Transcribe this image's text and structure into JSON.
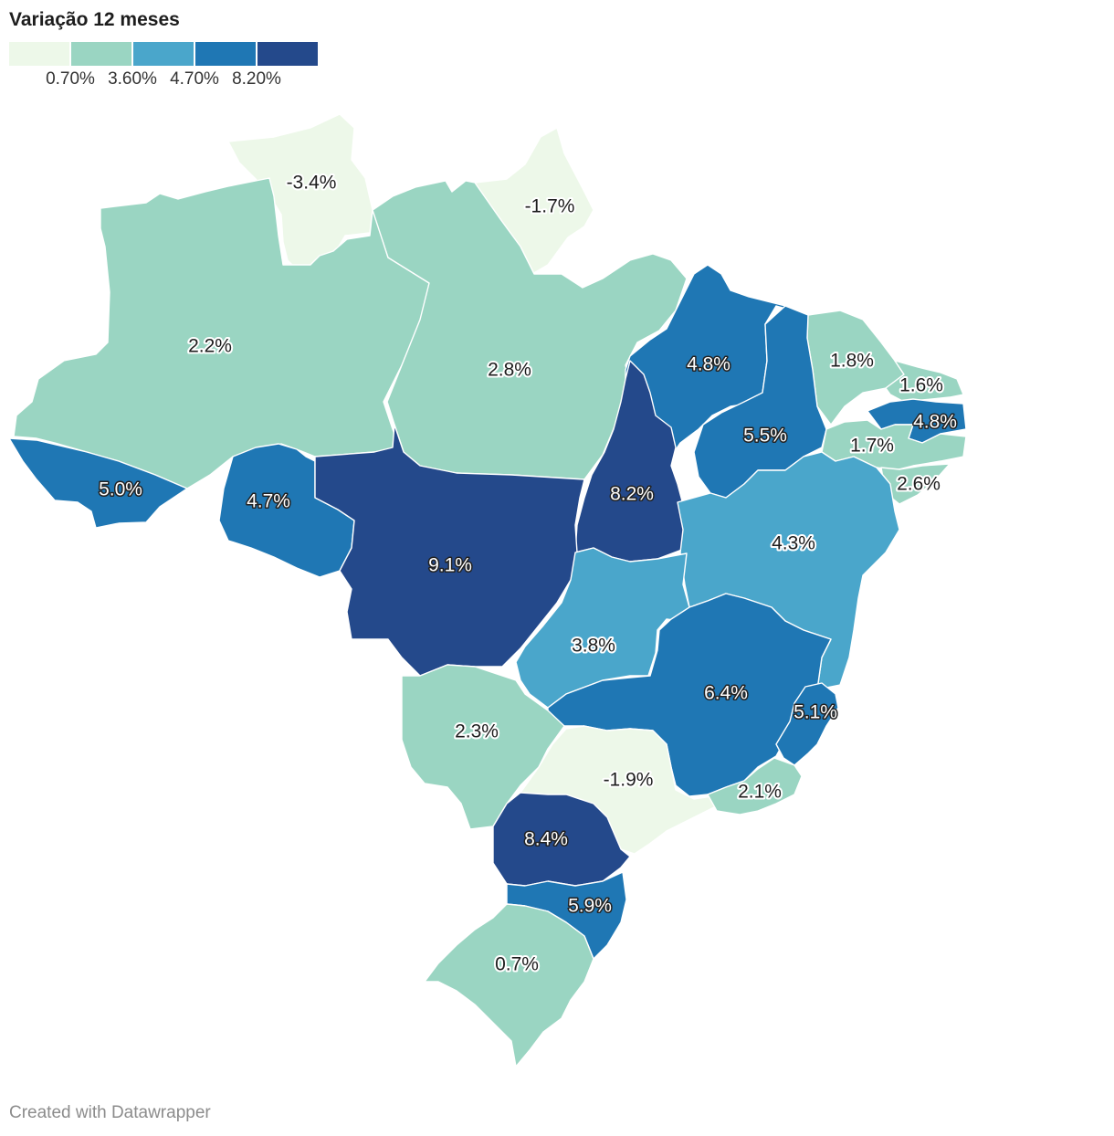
{
  "legend": {
    "title": "Variação 12 meses",
    "colors": [
      "#edf8e9",
      "#9ad5c2",
      "#4aa6cb",
      "#1f77b4",
      "#24498b"
    ],
    "ticks": [
      "0.70%",
      "3.60%",
      "4.70%",
      "8.20%"
    ]
  },
  "footer": "Created with Datawrapper",
  "chart_data": {
    "type": "choropleth",
    "title": "Variação 12 meses",
    "unit": "%",
    "breaks": [
      0.7,
      3.6,
      4.7,
      8.2
    ],
    "regions": [
      {
        "id": "RR",
        "value": -3.4,
        "label": "-3.4%"
      },
      {
        "id": "AP",
        "value": -1.7,
        "label": "-1.7%"
      },
      {
        "id": "AM",
        "value": 2.2,
        "label": "2.2%"
      },
      {
        "id": "PA",
        "value": 2.8,
        "label": "2.8%"
      },
      {
        "id": "MA",
        "value": 4.8,
        "label": "4.8%"
      },
      {
        "id": "CE",
        "value": 1.8,
        "label": "1.8%"
      },
      {
        "id": "RN",
        "value": 1.6,
        "label": "1.6%"
      },
      {
        "id": "PB",
        "value": 4.8,
        "label": "4.8%"
      },
      {
        "id": "PI",
        "value": 5.5,
        "label": "5.5%"
      },
      {
        "id": "PE",
        "value": 1.7,
        "label": "1.7%"
      },
      {
        "id": "AL",
        "value": 2.6,
        "label": "2.6%"
      },
      {
        "id": "AC",
        "value": 5.0,
        "label": "5.0%"
      },
      {
        "id": "RO",
        "value": 4.7,
        "label": "4.7%"
      },
      {
        "id": "TO",
        "value": 8.2,
        "label": "8.2%"
      },
      {
        "id": "MT",
        "value": 9.1,
        "label": "9.1%"
      },
      {
        "id": "BA",
        "value": 4.3,
        "label": "4.3%"
      },
      {
        "id": "GO",
        "value": 3.8,
        "label": "3.8%"
      },
      {
        "id": "MG",
        "value": 6.4,
        "label": "6.4%"
      },
      {
        "id": "ES",
        "value": 5.1,
        "label": "5.1%"
      },
      {
        "id": "MS",
        "value": 2.3,
        "label": "2.3%"
      },
      {
        "id": "SP",
        "value": -1.9,
        "label": "-1.9%"
      },
      {
        "id": "RJ",
        "value": 2.1,
        "label": "2.1%"
      },
      {
        "id": "PR",
        "value": 8.4,
        "label": "8.4%"
      },
      {
        "id": "SC",
        "value": 5.9,
        "label": "5.9%"
      },
      {
        "id": "RS",
        "value": 0.7,
        "label": "0.7%"
      }
    ]
  }
}
